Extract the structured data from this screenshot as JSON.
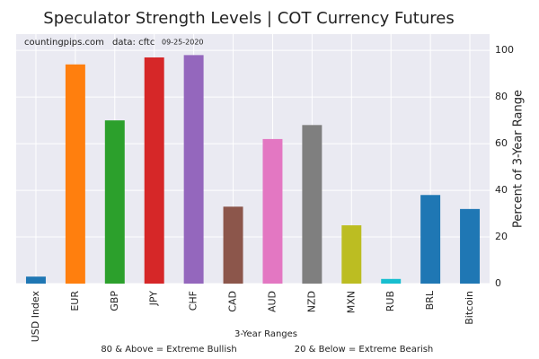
{
  "chart_data": {
    "type": "bar",
    "title": "Speculator Strength Levels | COT Currency Futures",
    "annotations": [
      "countingpips.com",
      "data: cftc",
      "09-25-2020"
    ],
    "categories": [
      "USD Index",
      "EUR",
      "GBP",
      "JPY",
      "CHF",
      "CAD",
      "AUD",
      "NZD",
      "MXN",
      "RUB",
      "BRL",
      "Bitcoin"
    ],
    "values": [
      3,
      94,
      70,
      97,
      98,
      33,
      62,
      68,
      25,
      2,
      38,
      32
    ],
    "colors": [
      "#1f77b4",
      "#ff7f0e",
      "#2ca02c",
      "#d62728",
      "#9467bd",
      "#8c564b",
      "#e377c2",
      "#7f7f7f",
      "#bcbd22",
      "#17becf",
      "#1f77b4",
      "#1f77b4"
    ],
    "x_label": "3-Year Ranges",
    "y_label": "Percent of 3-Year Range",
    "notes": [
      "80 & Above = Extreme Bullish",
      "20 & Below = Extreme Bearish"
    ],
    "ylim": [
      0,
      107
    ],
    "yticks": [
      0,
      20,
      40,
      60,
      80,
      100
    ],
    "grid": true,
    "y_axis_side": "right"
  }
}
